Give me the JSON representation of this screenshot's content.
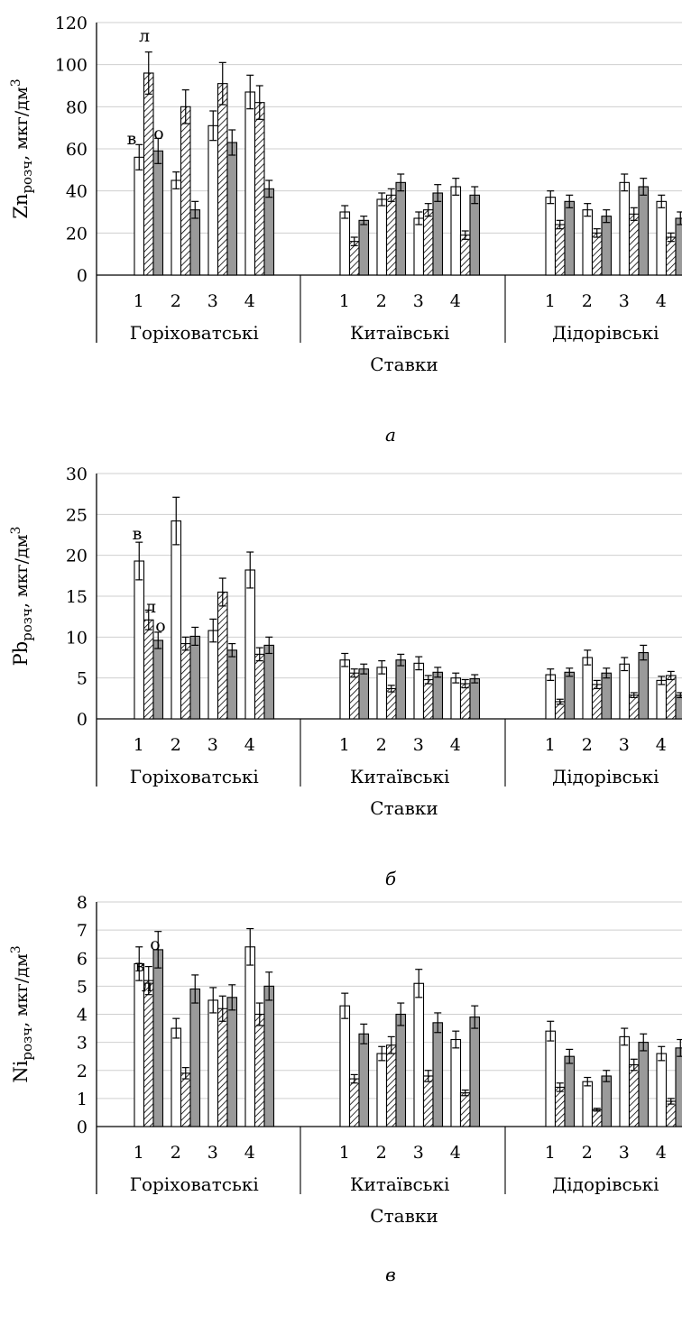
{
  "colors": {
    "v": "#ffffff",
    "l": "hatched",
    "o": "#9a9a9a",
    "outline": "#000000",
    "grid": "#cfcfcf"
  },
  "chart_data": [
    {
      "type": "bar",
      "panel_label": "а",
      "ylabel": "Znрозч, мкг/дм3",
      "ylabel_main": "Zn",
      "ylabel_sub": "розч",
      "ylabel_unit": ", мкг/дм",
      "ylabel_sup": "3",
      "xlabel": "Ставки",
      "ylim": [
        0,
        120
      ],
      "yticks": [
        0,
        20,
        40,
        60,
        80,
        100,
        120
      ],
      "groups": [
        "Горіховатські",
        "Китаївські",
        "Дідорівські"
      ],
      "categories": [
        "1",
        "2",
        "3",
        "4"
      ],
      "series_markers": [
        "в",
        "л",
        "о"
      ],
      "series": [
        {
          "values": [
            [
              56,
              45,
              71,
              87
            ],
            [
              30,
              36,
              27,
              42
            ],
            [
              37,
              31,
              44,
              35
            ]
          ],
          "errors": [
            [
              6,
              4,
              7,
              8
            ],
            [
              3,
              3,
              3,
              4
            ],
            [
              3,
              3,
              4,
              3
            ]
          ]
        },
        {
          "values": [
            [
              96,
              80,
              91,
              82
            ],
            [
              16,
              38,
              31,
              19
            ],
            [
              24,
              20,
              29,
              18
            ]
          ],
          "errors": [
            [
              10,
              8,
              10,
              8
            ],
            [
              2,
              3,
              3,
              2
            ],
            [
              2,
              2,
              3,
              2
            ]
          ]
        },
        {
          "values": [
            [
              59,
              31,
              63,
              41
            ],
            [
              26,
              44,
              39,
              38
            ],
            [
              35,
              28,
              42,
              27
            ]
          ],
          "errors": [
            [
              6,
              4,
              6,
              4
            ],
            [
              2,
              4,
              4,
              4
            ],
            [
              3,
              3,
              4,
              3
            ]
          ]
        }
      ]
    },
    {
      "type": "bar",
      "panel_label": "б",
      "ylabel": "Pbрозч, мкг/дм3",
      "ylabel_main": "Pb",
      "ylabel_sub": "розч",
      "ylabel_unit": ", мкг/дм",
      "ylabel_sup": "3",
      "xlabel": "Ставки",
      "ylim": [
        0,
        30
      ],
      "yticks": [
        0,
        5,
        10,
        15,
        20,
        25,
        30
      ],
      "groups": [
        "Горіховатські",
        "Китаївські",
        "Дідорівські"
      ],
      "categories": [
        "1",
        "2",
        "3",
        "4"
      ],
      "series_markers": [
        "в",
        "л",
        "о"
      ],
      "series": [
        {
          "values": [
            [
              19.3,
              24.2,
              10.8,
              18.2
            ],
            [
              7.2,
              6.3,
              6.8,
              5.0
            ],
            [
              5.4,
              7.5,
              6.7,
              4.7
            ]
          ],
          "errors": [
            [
              2.3,
              2.9,
              1.4,
              2.2
            ],
            [
              0.8,
              0.8,
              0.8,
              0.6
            ],
            [
              0.7,
              0.9,
              0.8,
              0.5
            ]
          ]
        },
        {
          "values": [
            [
              12.1,
              9.2,
              15.5,
              7.9
            ],
            [
              5.6,
              3.7,
              4.8,
              4.3
            ],
            [
              2.1,
              4.2,
              2.9,
              5.3
            ]
          ],
          "errors": [
            [
              1.2,
              0.8,
              1.7,
              0.8
            ],
            [
              0.5,
              0.4,
              0.5,
              0.5
            ],
            [
              0.3,
              0.5,
              0.3,
              0.5
            ]
          ]
        },
        {
          "values": [
            [
              9.6,
              10.1,
              8.4,
              9.0
            ],
            [
              6.1,
              7.2,
              5.7,
              4.9
            ],
            [
              5.7,
              5.6,
              8.1,
              2.9
            ]
          ],
          "errors": [
            [
              1.0,
              1.1,
              0.8,
              1.0
            ],
            [
              0.6,
              0.7,
              0.6,
              0.5
            ],
            [
              0.5,
              0.6,
              0.9,
              0.3
            ]
          ]
        }
      ]
    },
    {
      "type": "bar",
      "panel_label": "в",
      "ylabel": "Niрозч, мкг/дм3",
      "ylabel_main": "Ni",
      "ylabel_sub": "розч",
      "ylabel_unit": ", мкг/дм",
      "ylabel_sup": "3",
      "xlabel": "Ставки",
      "ylim": [
        0,
        8
      ],
      "yticks": [
        0,
        1,
        2,
        3,
        4,
        5,
        6,
        7,
        8
      ],
      "groups": [
        "Горіховатські",
        "Китаївські",
        "Дідорівські"
      ],
      "categories": [
        "1",
        "2",
        "3",
        "4"
      ],
      "series_markers": [
        "в",
        "л",
        "о"
      ],
      "series": [
        {
          "values": [
            [
              5.8,
              3.5,
              4.5,
              6.4
            ],
            [
              4.3,
              2.6,
              5.1,
              3.1
            ],
            [
              3.4,
              1.6,
              3.2,
              2.6
            ]
          ],
          "errors": [
            [
              0.6,
              0.35,
              0.45,
              0.65
            ],
            [
              0.45,
              0.25,
              0.5,
              0.3
            ],
            [
              0.35,
              0.15,
              0.3,
              0.25
            ]
          ]
        },
        {
          "values": [
            [
              5.2,
              1.9,
              4.2,
              4.0
            ],
            [
              1.7,
              2.9,
              1.8,
              1.2
            ],
            [
              1.4,
              0.6,
              2.2,
              0.9
            ]
          ],
          "errors": [
            [
              0.5,
              0.2,
              0.45,
              0.4
            ],
            [
              0.15,
              0.3,
              0.2,
              0.1
            ],
            [
              0.15,
              0.05,
              0.2,
              0.1
            ]
          ]
        },
        {
          "values": [
            [
              6.3,
              4.9,
              4.6,
              5.0
            ],
            [
              3.3,
              4.0,
              3.7,
              3.9
            ],
            [
              2.5,
              1.8,
              3.0,
              2.8
            ]
          ],
          "errors": [
            [
              0.65,
              0.5,
              0.45,
              0.5
            ],
            [
              0.35,
              0.4,
              0.35,
              0.4
            ],
            [
              0.25,
              0.2,
              0.3,
              0.3
            ]
          ]
        }
      ]
    }
  ]
}
